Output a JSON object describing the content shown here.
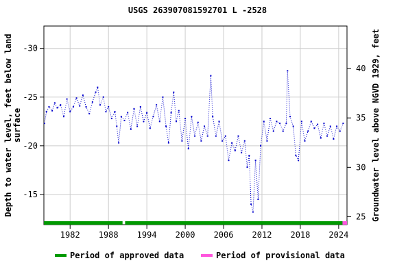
{
  "chart_data": {
    "type": "line",
    "title": "USGS 263907081592701 L  -2528",
    "y_label": [
      "Depth to water level, feet below land",
      "surface"
    ],
    "y2_label": "Groundwater level above NGVD 1929, feet",
    "xlim": [
      1977.9,
      2025.3
    ],
    "xticks": [
      1982,
      1988,
      1994,
      2000,
      2006,
      2012,
      2018,
      2024
    ],
    "ylim": [
      -32.3,
      -11.9
    ],
    "y_inverted": true,
    "yticks": [
      -30,
      -25,
      -20,
      -15
    ],
    "y2lim": [
      24.2,
      44.3
    ],
    "y2ticks": [
      25,
      30,
      35,
      40
    ],
    "grid": true,
    "series": [
      {
        "name": "Depth to water level",
        "color": "#0000cc",
        "x": [
          1978.0,
          1978.3,
          1978.7,
          1979.2,
          1979.6,
          1980.0,
          1980.5,
          1981.0,
          1981.5,
          1982.0,
          1982.5,
          1983.0,
          1983.5,
          1984.0,
          1984.5,
          1985.0,
          1985.5,
          1986.0,
          1986.3,
          1986.7,
          1987.2,
          1987.6,
          1988.0,
          1988.5,
          1989.0,
          1989.3,
          1989.6,
          1990.0,
          1990.5,
          1991.0,
          1991.5,
          1992.0,
          1992.5,
          1993.0,
          1993.5,
          1994.0,
          1994.5,
          1995.0,
          1995.5,
          1996.0,
          1996.5,
          1997.0,
          1997.4,
          1997.8,
          1998.2,
          1998.6,
          1999.0,
          1999.5,
          2000.0,
          2000.5,
          2001.0,
          2001.5,
          2002.0,
          2002.5,
          2003.0,
          2003.5,
          2004.0,
          2004.3,
          2004.8,
          2005.3,
          2005.8,
          2006.3,
          2006.8,
          2007.3,
          2007.8,
          2008.3,
          2008.8,
          2009.3,
          2009.7,
          2010.0,
          2010.3,
          2010.6,
          2011.0,
          2011.4,
          2011.8,
          2012.3,
          2012.8,
          2013.3,
          2013.8,
          2014.3,
          2014.8,
          2015.3,
          2015.8,
          2016.0,
          2016.4,
          2016.9,
          2017.3,
          2017.7,
          2018.2,
          2018.7,
          2019.2,
          2019.7,
          2020.2,
          2020.7,
          2021.2,
          2021.7,
          2022.2,
          2022.7,
          2023.2,
          2023.7,
          2024.2,
          2024.7
        ],
        "values": [
          -22.3,
          -23.5,
          -24.0,
          -23.6,
          -24.4,
          -23.9,
          -24.2,
          -23.0,
          -24.8,
          -23.5,
          -24.0,
          -24.9,
          -24.1,
          -25.2,
          -24.0,
          -23.3,
          -24.5,
          -25.5,
          -26.0,
          -24.2,
          -25.0,
          -23.5,
          -24.0,
          -22.8,
          -23.5,
          -22.0,
          -20.3,
          -23.0,
          -22.6,
          -23.4,
          -21.7,
          -23.8,
          -22.0,
          -24.0,
          -22.5,
          -23.4,
          -21.8,
          -23.0,
          -24.2,
          -22.5,
          -25.0,
          -22.0,
          -20.3,
          -23.4,
          -25.5,
          -22.5,
          -23.6,
          -20.5,
          -22.8,
          -19.7,
          -23.0,
          -21.0,
          -22.4,
          -20.5,
          -22.0,
          -21.0,
          -27.2,
          -23.0,
          -21.0,
          -22.5,
          -20.5,
          -21.0,
          -18.5,
          -20.3,
          -19.5,
          -21.0,
          -19.3,
          -20.5,
          -17.8,
          -19.0,
          -14.0,
          -13.2,
          -18.5,
          -14.5,
          -20.0,
          -22.5,
          -20.5,
          -22.8,
          -21.5,
          -22.5,
          -22.3,
          -21.5,
          -22.3,
          -27.7,
          -23.0,
          -22.0,
          -19.0,
          -18.5,
          -22.5,
          -20.5,
          -21.5,
          -22.5,
          -21.8,
          -22.2,
          -20.8,
          -22.3,
          -21.0,
          -22.0,
          -20.7,
          -22.0,
          -21.5,
          -22.3
        ]
      }
    ],
    "periods": [
      {
        "name": "Period of approved data",
        "color": "#009900",
        "ranges": [
          [
            1977.9,
            1990.2
          ],
          [
            1990.6,
            2024.6
          ]
        ]
      },
      {
        "name": "Period of provisional data",
        "color": "#ff55dd",
        "ranges": [
          [
            2024.6,
            2025.3
          ]
        ]
      }
    ]
  }
}
